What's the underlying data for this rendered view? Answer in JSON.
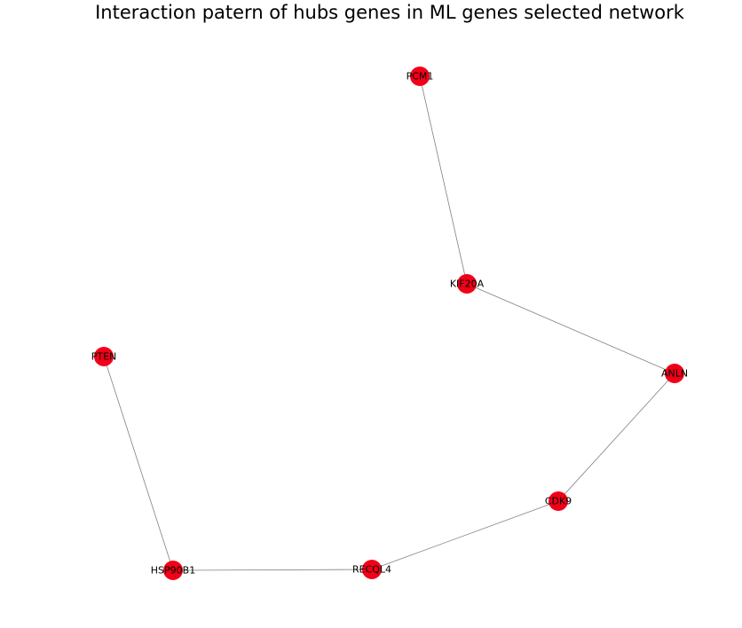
{
  "title": "Interaction patern of hubs genes in ML genes selected network",
  "colors": {
    "node": "#f20019",
    "edge": "#808080",
    "label": "#000000"
  },
  "nodes": [
    {
      "id": "PCM1",
      "label": "PCM1"
    },
    {
      "id": "KIF20A",
      "label": "KIF20A"
    },
    {
      "id": "ANLN",
      "label": "ANLN"
    },
    {
      "id": "CDK9",
      "label": "CDK9"
    },
    {
      "id": "RECQL4",
      "label": "RECQL4"
    },
    {
      "id": "HSP90B1",
      "label": "HSP90B1"
    },
    {
      "id": "PTEN",
      "label": "PTEN"
    }
  ],
  "edges": [
    {
      "source": "PCM1",
      "target": "KIF20A"
    },
    {
      "source": "KIF20A",
      "target": "ANLN"
    },
    {
      "source": "ANLN",
      "target": "CDK9"
    },
    {
      "source": "CDK9",
      "target": "RECQL4"
    },
    {
      "source": "RECQL4",
      "target": "HSP90B1"
    },
    {
      "source": "HSP90B1",
      "target": "PTEN"
    }
  ]
}
